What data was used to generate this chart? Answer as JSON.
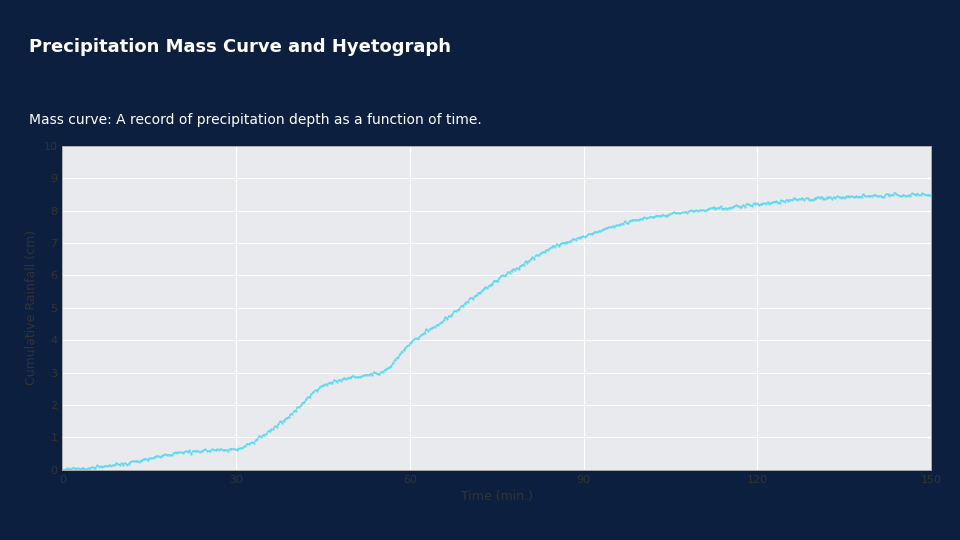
{
  "title": "Precipitation Mass Curve and Hyetograph",
  "subtitle": "Mass curve: A record of precipitation depth as a function of time.",
  "xlabel": "Time (min.)",
  "ylabel": "Cumulative Rainfall (cm)",
  "xlim": [
    0,
    150
  ],
  "ylim": [
    0,
    10
  ],
  "xticks": [
    0,
    30,
    60,
    90,
    120,
    150
  ],
  "yticks": [
    0,
    1,
    2,
    3,
    4,
    5,
    6,
    7,
    8,
    9,
    10
  ],
  "line_color": "#5DD8F0",
  "background_color": "#0C1F3F",
  "plot_bg_color": "#E8EAED",
  "title_color": "#FFFFFF",
  "subtitle_color": "#FFFFFF",
  "tick_color": "#333333",
  "grid_color": "#FFFFFF",
  "title_fontsize": 13,
  "subtitle_fontsize": 10,
  "label_fontsize": 9,
  "tick_fontsize": 8,
  "curve_points_t": [
    0,
    5,
    10,
    15,
    20,
    25,
    30,
    35,
    40,
    45,
    50,
    55,
    60,
    65,
    70,
    75,
    80,
    85,
    90,
    95,
    100,
    105,
    110,
    115,
    120,
    125,
    130,
    135,
    140,
    145,
    150
  ],
  "curve_points_y": [
    0.0,
    0.08,
    0.18,
    0.35,
    0.52,
    0.6,
    0.65,
    1.1,
    1.8,
    2.6,
    2.85,
    3.0,
    3.9,
    4.5,
    5.2,
    5.85,
    6.4,
    6.9,
    7.2,
    7.5,
    7.75,
    7.9,
    8.0,
    8.1,
    8.2,
    8.3,
    8.38,
    8.43,
    8.46,
    8.48,
    8.5
  ]
}
